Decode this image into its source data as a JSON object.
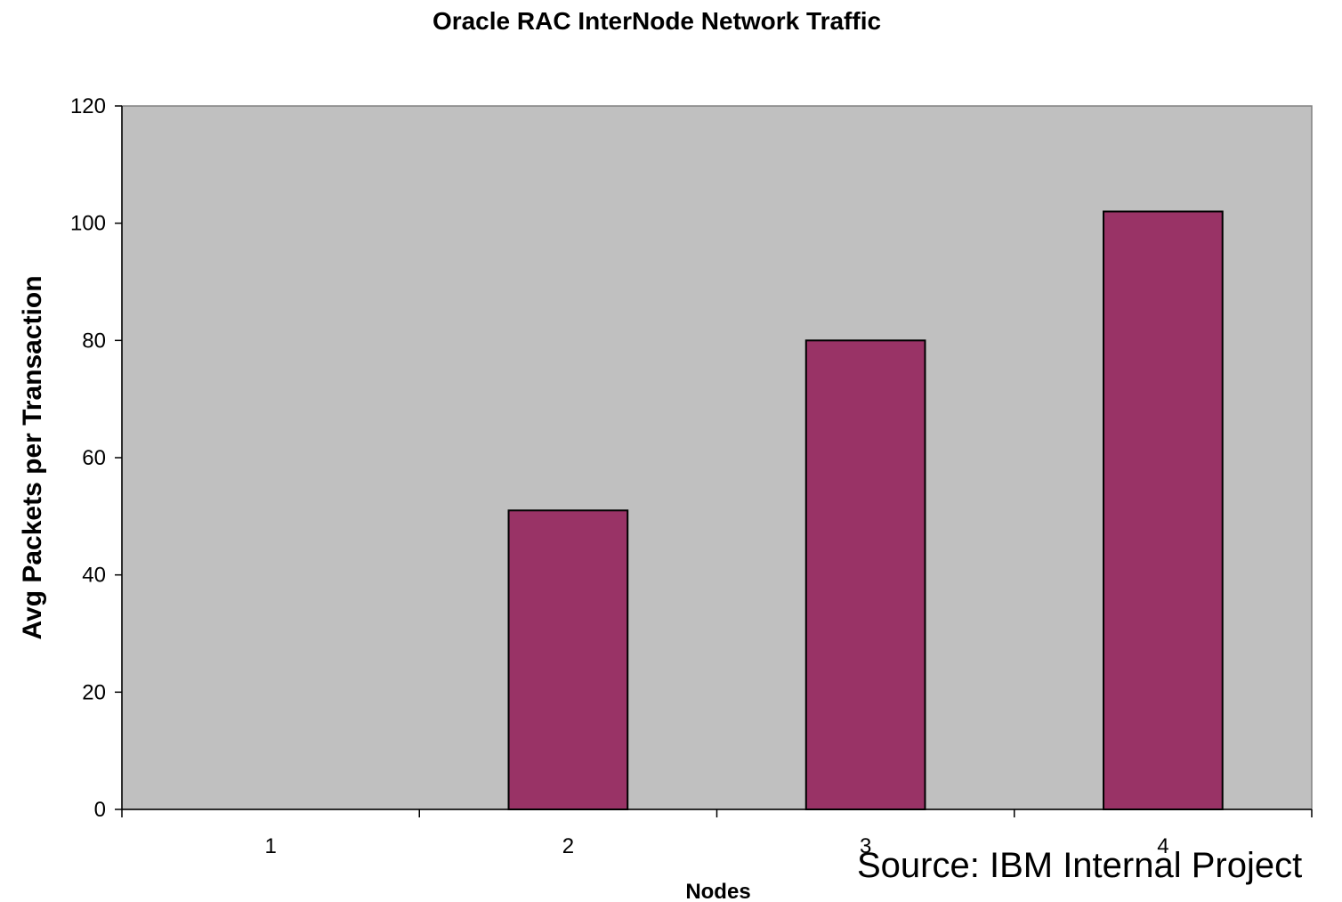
{
  "chart_data": {
    "type": "bar",
    "title": "Oracle RAC InterNode Network Traffic",
    "xlabel": "Nodes",
    "ylabel": "Avg Packets per Transaction",
    "categories": [
      "1",
      "2",
      "3",
      "4"
    ],
    "values": [
      0,
      51,
      80,
      102
    ],
    "ylim": [
      0,
      120
    ],
    "yticks": [
      0,
      20,
      40,
      60,
      80,
      100,
      120
    ],
    "grid": false,
    "legend": "none",
    "annotation": "Source: IBM Internal Project",
    "colors": {
      "plot_background": "#c0c0c0",
      "bar_fill": "#993366",
      "bar_stroke": "#000000",
      "axis": "#000000"
    }
  }
}
